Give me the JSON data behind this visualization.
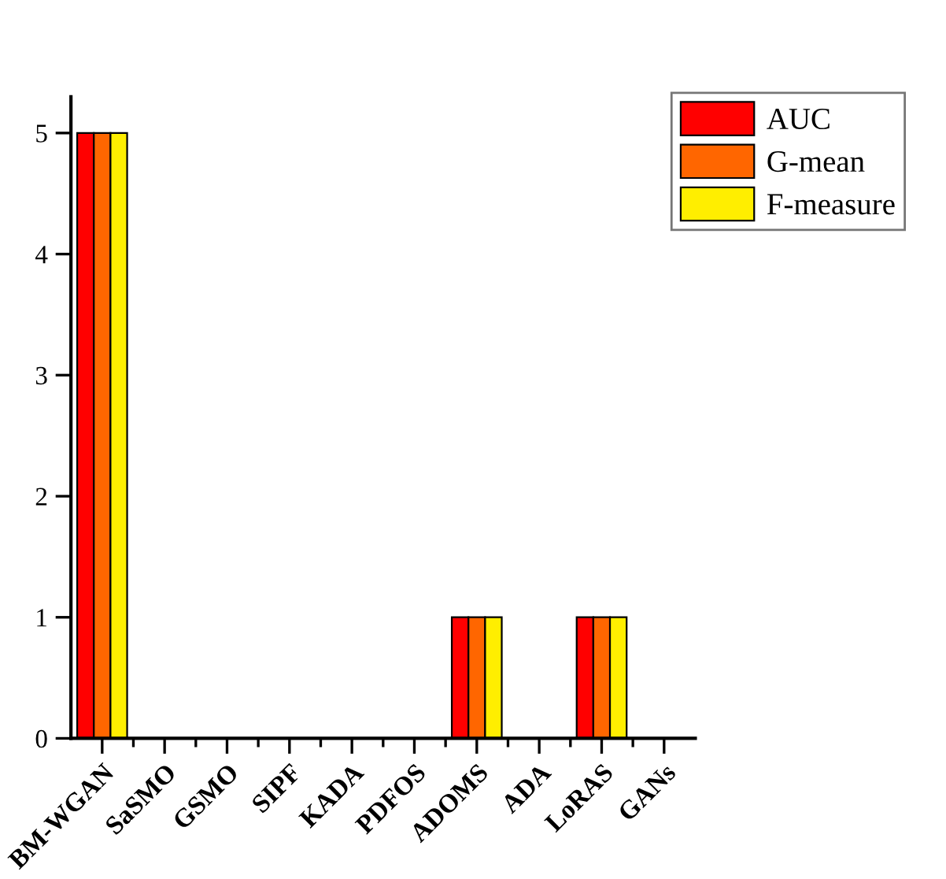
{
  "chart_data": {
    "type": "bar",
    "categories": [
      "BM-WGAN",
      "SaSMO",
      "GSMO",
      "SIPF",
      "KADA",
      "PDFOS",
      "ADOMS",
      "ADA",
      "LoRAS",
      "GANs"
    ],
    "series": [
      {
        "name": "AUC",
        "color": "#ff0000",
        "values": [
          5,
          0,
          0,
          0,
          0,
          0,
          1,
          0,
          1,
          0
        ]
      },
      {
        "name": "G-mean",
        "color": "#ff6600",
        "values": [
          5,
          0,
          0,
          0,
          0,
          0,
          1,
          0,
          1,
          0
        ]
      },
      {
        "name": "F-measure",
        "color": "#ffee00",
        "values": [
          5,
          0,
          0,
          0,
          0,
          0,
          1,
          0,
          1,
          0
        ]
      }
    ],
    "ylim": [
      0,
      5.3
    ],
    "yticks": [
      0,
      1,
      2,
      3,
      4,
      5
    ],
    "grid": false,
    "legend": "top right"
  }
}
